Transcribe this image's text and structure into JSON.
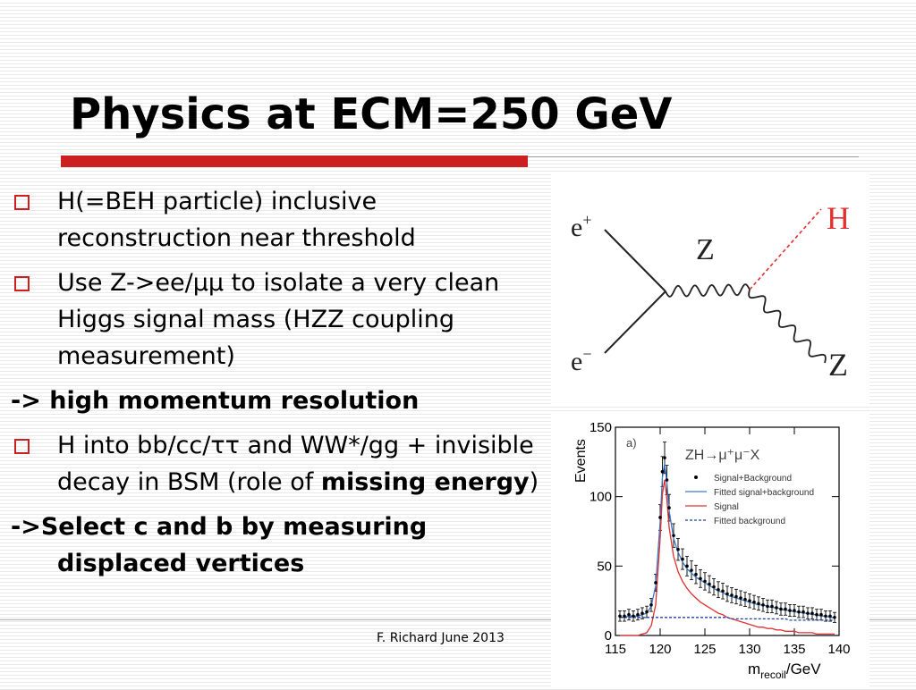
{
  "slide": {
    "title": "Physics at ECM=250 GeV",
    "footer": "F. Richard June 2013",
    "accent_color": "#cc1f1f"
  },
  "bullets": {
    "b1": "H(=BEH particle) inclusive reconstruction near threshold",
    "b2": "Use Z->ee/μμ to isolate a very clean Higgs signal mass (HZZ coupling measurement)",
    "b3": "-> high momentum resolution",
    "b4_text": "H into bb/cc/ττ and WW*/gg + invisible decay in BSM (role of ",
    "b4_bold": "missing energy",
    "b4_end": ")",
    "b5_prefix": "->",
    "b5_text": "Select c and b by measuring displaced vertices"
  },
  "feynman": {
    "e_plus": "e",
    "e_plus_sup": "+",
    "e_minus": "e",
    "e_minus_sup": "−",
    "z_label": "Z",
    "z_out_label": "Z",
    "h_label": "H",
    "h_color": "#e03030"
  },
  "chart_data": {
    "type": "line",
    "panel_label": "a)",
    "process_label": "ZH→μ⁺μ⁻X",
    "ylabel": "Events",
    "xlabel_main": "m",
    "xlabel_sub": "recoil",
    "xlabel_unit": "/GeV",
    "xlim": [
      115,
      140
    ],
    "ylim": [
      0,
      150
    ],
    "xticks": [
      115,
      120,
      125,
      130,
      135,
      140
    ],
    "yticks": [
      0,
      50,
      100,
      150
    ],
    "legend": [
      {
        "label": "Signal+Background",
        "style": "points",
        "color": "#000000"
      },
      {
        "label": "Fitted signal+background",
        "style": "line",
        "color": "#3a7ac8"
      },
      {
        "label": "Signal",
        "style": "line",
        "color": "#e03030"
      },
      {
        "label": "Fitted background",
        "style": "dashed",
        "color": "#1f3fa8"
      }
    ],
    "x": [
      115.5,
      116.0,
      116.5,
      117.0,
      117.5,
      118.0,
      118.5,
      119.0,
      119.5,
      120.0,
      120.25,
      120.5,
      120.75,
      121.0,
      121.5,
      122.0,
      122.5,
      123.0,
      123.5,
      124.0,
      124.5,
      125.0,
      125.5,
      126.0,
      126.5,
      127.0,
      127.5,
      128.0,
      128.5,
      129.0,
      129.5,
      130.0,
      130.5,
      131.0,
      131.5,
      132.0,
      132.5,
      133.0,
      133.5,
      134.0,
      134.5,
      135.0,
      135.5,
      136.0,
      136.5,
      137.0,
      137.5,
      138.0,
      138.5,
      139.0,
      139.5
    ],
    "series": [
      {
        "name": "Signal+Background",
        "values": [
          14,
          14,
          15,
          14,
          15,
          16,
          17,
          22,
          38,
          85,
          118,
          128,
          112,
          92,
          72,
          62,
          55,
          50,
          47,
          44,
          41,
          39,
          37,
          35,
          33,
          32,
          30,
          29,
          28,
          27,
          26,
          25,
          24,
          23,
          22,
          21,
          21,
          20,
          19,
          19,
          18,
          18,
          17,
          17,
          16,
          16,
          15,
          15,
          14,
          14,
          13
        ]
      },
      {
        "name": "Fitted signal+background",
        "values": [
          13,
          13,
          14,
          14,
          14,
          15,
          16,
          21,
          36,
          82,
          114,
          124,
          110,
          90,
          70,
          60,
          53,
          48,
          45,
          42,
          40,
          38,
          36,
          34,
          32,
          31,
          29,
          28,
          27,
          26,
          25,
          24,
          23,
          22,
          22,
          21,
          20,
          20,
          19,
          18,
          18,
          17,
          17,
          16,
          16,
          15,
          15,
          14,
          14,
          13,
          13
        ]
      },
      {
        "name": "Signal",
        "values": [
          0,
          0,
          0,
          0,
          0,
          1,
          2,
          7,
          22,
          70,
          102,
          112,
          98,
          78,
          57,
          46,
          39,
          34,
          30,
          27,
          24,
          22,
          20,
          18,
          16,
          15,
          13,
          12,
          11,
          10,
          9,
          8,
          7,
          6,
          6,
          5,
          5,
          4,
          4,
          3,
          3,
          3,
          2,
          2,
          2,
          2,
          1,
          1,
          1,
          1,
          1
        ]
      },
      {
        "name": "Fitted background",
        "values": [
          13,
          13,
          13,
          13,
          13,
          13,
          13,
          13,
          13,
          13,
          13,
          13,
          13,
          13,
          13,
          13,
          13,
          13,
          13,
          13,
          13,
          13,
          13,
          13,
          13,
          13,
          13,
          12,
          12,
          12,
          12,
          12,
          12,
          12,
          12,
          12,
          12,
          12,
          12,
          12,
          11,
          11,
          11,
          11,
          11,
          11,
          11,
          11,
          11,
          11,
          11
        ]
      }
    ]
  }
}
